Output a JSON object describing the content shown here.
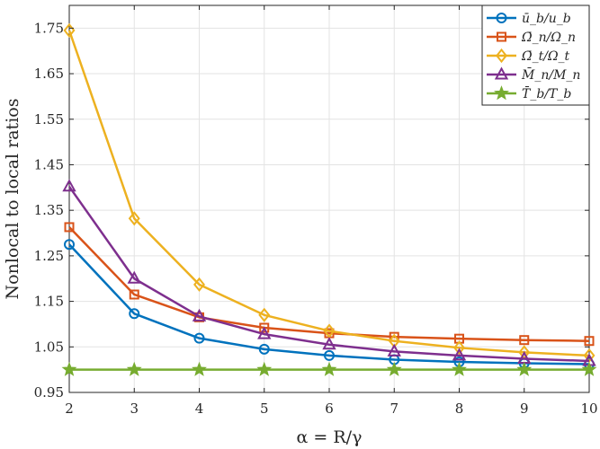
{
  "chart_data": {
    "type": "line",
    "xlabel": "α = R/γ",
    "ylabel": "Nonlocal to local ratios",
    "x": [
      2,
      3,
      4,
      5,
      6,
      7,
      8,
      9,
      10
    ],
    "xlim": [
      2,
      10
    ],
    "ylim": [
      0.95,
      1.8
    ],
    "xticks": [
      2,
      3,
      4,
      5,
      6,
      7,
      8,
      9,
      10
    ],
    "xtick_labels": [
      "2",
      "3",
      "4",
      "5",
      "6",
      "7",
      "8",
      "9",
      "10"
    ],
    "yticks": [
      0.95,
      1.05,
      1.15,
      1.25,
      1.35,
      1.45,
      1.55,
      1.65,
      1.75
    ],
    "ytick_labels": [
      "0.95",
      "1.05",
      "1.15",
      "1.25",
      "1.35",
      "1.45",
      "1.55",
      "1.65",
      "1.75"
    ],
    "grid": true,
    "legend_position": "top-right",
    "series": [
      {
        "name": "ū_b/u_b",
        "color": "#0072BD",
        "marker": "circle",
        "values": [
          1.275,
          1.123,
          1.069,
          1.045,
          1.031,
          1.022,
          1.017,
          1.014,
          1.012
        ]
      },
      {
        "name": "Ω̄_n/Ω_n",
        "color": "#D95319",
        "marker": "square",
        "values": [
          1.313,
          1.165,
          1.115,
          1.092,
          1.08,
          1.072,
          1.068,
          1.065,
          1.063
        ]
      },
      {
        "name": "Ω̄_t/Ω_t",
        "color": "#EDB120",
        "marker": "diamond",
        "values": [
          1.745,
          1.332,
          1.187,
          1.12,
          1.085,
          1.063,
          1.048,
          1.038,
          1.031
        ]
      },
      {
        "name": "M̄_n/M_n",
        "color": "#7E2F8E",
        "marker": "triangle",
        "values": [
          1.402,
          1.2,
          1.117,
          1.078,
          1.055,
          1.04,
          1.031,
          1.024,
          1.019
        ]
      },
      {
        "name": "T̄_b/T_b",
        "color": "#77AC30",
        "marker": "star",
        "values": [
          1.0,
          1.0,
          1.0,
          1.0,
          1.0,
          1.0,
          1.0,
          1.0,
          1.0
        ]
      }
    ]
  }
}
